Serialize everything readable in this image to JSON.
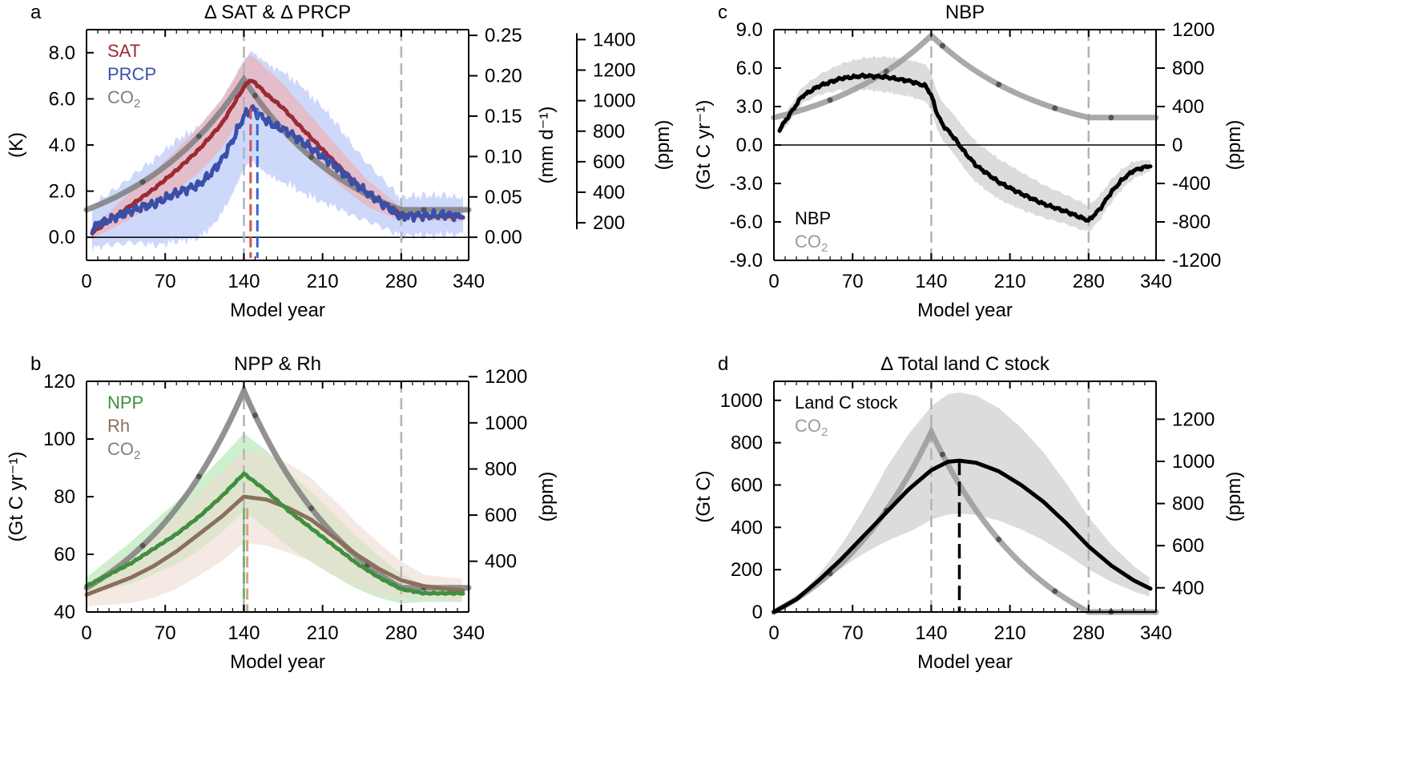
{
  "colors": {
    "sat": "#9b2a33",
    "prcp": "#3a4fa8",
    "co2": "#7f7f7f",
    "npp": "#3f8f3f",
    "rh": "#8a6f5e",
    "nbp": "#000000",
    "land_c": "#000000",
    "sat_band": "#e7b9c2",
    "prcp_band": "#c9d4fb",
    "npp_band": "#c6ecc6",
    "rh_band": "#ecdcd0",
    "gray_band": "#dcdcdc",
    "dash": "#b3b3b3"
  },
  "chart_data": [
    {
      "panel": "a",
      "type": "line",
      "title": "Δ SAT & Δ PRCP",
      "xlabel": "Model year",
      "ylabel": "(K)",
      "xlim": [
        0,
        340
      ],
      "xticks": [
        "0",
        "70",
        "140",
        "210",
        "280",
        "340"
      ],
      "ylim": [
        -1,
        9
      ],
      "yticks": [
        "0.0",
        "2.0",
        "4.0",
        "6.0",
        "8.0"
      ],
      "right_axes": [
        {
          "label": "(mm d⁻¹)",
          "range": [
            -0.0286,
            0.2571
          ],
          "ticks": [
            "0.00",
            "0.05",
            "0.10",
            "0.15",
            "0.20",
            "0.25"
          ]
        },
        {
          "label": "(ppm)",
          "range": [
            -46,
            1465
          ],
          "ticks": [
            "200",
            "400",
            "600",
            "800",
            "1000",
            "1200",
            "1400"
          ]
        }
      ],
      "legend": [
        {
          "text": "SAT",
          "color": "#9b2a33"
        },
        {
          "text": "PRCP",
          "color": "#3a4fa8"
        },
        {
          "text": "CO",
          "sub": "2",
          "color": "#7f7f7f"
        }
      ],
      "series": [
        {
          "name": "SAT",
          "x": [
            5,
            20,
            40,
            60,
            80,
            100,
            120,
            135,
            140,
            145,
            150,
            160,
            175,
            190,
            210,
            230,
            250,
            270,
            280,
            290,
            300,
            320,
            335
          ],
          "y": [
            0.2,
            0.7,
            1.4,
            2.1,
            2.9,
            3.8,
            4.9,
            6.1,
            6.5,
            6.8,
            6.7,
            6.2,
            5.6,
            4.8,
            3.8,
            2.8,
            1.9,
            1.3,
            1.0,
            0.95,
            0.92,
            0.9,
            0.88
          ]
        },
        {
          "name": "PRCP",
          "x": [
            5,
            10,
            20,
            30,
            40,
            50,
            60,
            70,
            80,
            90,
            100,
            110,
            120,
            130,
            140,
            147,
            155,
            165,
            180,
            200,
            220,
            240,
            260,
            280,
            290,
            300,
            310,
            320,
            330,
            335
          ],
          "y": [
            0.01,
            0.016,
            0.022,
            0.027,
            0.033,
            0.038,
            0.041,
            0.048,
            0.055,
            0.06,
            0.065,
            0.078,
            0.095,
            0.12,
            0.15,
            0.16,
            0.15,
            0.14,
            0.13,
            0.11,
            0.09,
            0.065,
            0.045,
            0.025,
            0.027,
            0.027,
            0.027,
            0.028,
            0.026,
            0.028
          ]
        },
        {
          "name": "CO2",
          "x": [
            0,
            140,
            280,
            340
          ],
          "y": [
            285,
            1140,
            285,
            285
          ]
        }
      ]
    },
    {
      "panel": "b",
      "type": "line",
      "title": "NPP & Rh",
      "xlabel": "Model year",
      "ylabel": "(Gt C yr⁻¹)",
      "xlim": [
        0,
        340
      ],
      "xticks": [
        "0",
        "70",
        "140",
        "210",
        "280",
        "340"
      ],
      "ylim": [
        40,
        120
      ],
      "yticks": [
        "40",
        "60",
        "80",
        "100",
        "120"
      ],
      "right_axes": [
        {
          "label": "(ppm)",
          "range": [
            180,
            1180
          ],
          "ticks": [
            "400",
            "600",
            "800",
            "1000",
            "1200"
          ]
        }
      ],
      "legend": [
        {
          "text": "NPP",
          "color": "#3f8f3f"
        },
        {
          "text": "Rh",
          "color": "#8a6f5e"
        },
        {
          "text": "CO",
          "sub": "2",
          "color": "#7f7f7f"
        }
      ],
      "series": [
        {
          "name": "NPP",
          "x": [
            0,
            20,
            40,
            60,
            80,
            100,
            120,
            140,
            160,
            180,
            200,
            220,
            240,
            260,
            280,
            300,
            320,
            335
          ],
          "y": [
            49,
            53,
            57,
            62,
            67,
            73,
            80,
            88,
            82,
            75,
            69,
            63,
            57,
            52,
            48,
            46.5,
            46.5,
            46.5
          ]
        },
        {
          "name": "Rh",
          "x": [
            0,
            20,
            40,
            60,
            80,
            100,
            120,
            140,
            160,
            180,
            200,
            220,
            240,
            260,
            280,
            300,
            320,
            335
          ],
          "y": [
            46,
            49,
            52,
            56,
            61,
            67,
            73,
            80,
            79,
            76,
            72,
            66,
            60,
            55,
            51,
            49,
            48,
            47.5
          ]
        },
        {
          "name": "CO2",
          "x": [
            0,
            140,
            280,
            340
          ],
          "y": [
            285,
            1140,
            285,
            285
          ]
        }
      ]
    },
    {
      "panel": "c",
      "type": "line",
      "title": "NBP",
      "xlabel": "Model year",
      "ylabel": "(Gt C yr⁻¹)",
      "xlim": [
        0,
        340
      ],
      "xticks": [
        "0",
        "70",
        "140",
        "210",
        "280",
        "340"
      ],
      "ylim": [
        -9,
        9
      ],
      "yticks": [
        "-9.0",
        "-6.0",
        "-3.0",
        "0.0",
        "3.0",
        "6.0",
        "9.0"
      ],
      "right_axes": [
        {
          "label": "(ppm)",
          "range": [
            -1200,
            1200
          ],
          "ticks": [
            "-1200",
            "-800",
            "-400",
            "0",
            "400",
            "800",
            "1200"
          ]
        }
      ],
      "legend": [
        {
          "text": "NBP",
          "color": "#000000"
        },
        {
          "text": "CO",
          "sub": "2",
          "color": "#9a9a9a"
        }
      ],
      "series": [
        {
          "name": "NBP",
          "x": [
            5,
            15,
            25,
            40,
            60,
            80,
            100,
            120,
            135,
            140,
            145,
            150,
            160,
            170,
            180,
            200,
            220,
            240,
            260,
            280,
            290,
            300,
            310,
            320,
            335
          ],
          "y": [
            1.2,
            2.5,
            3.8,
            4.6,
            5.2,
            5.4,
            5.3,
            5.0,
            4.6,
            3.9,
            2.5,
            1.6,
            0.6,
            -0.6,
            -1.6,
            -2.9,
            -3.8,
            -4.6,
            -5.2,
            -5.9,
            -5.0,
            -3.7,
            -2.7,
            -2.0,
            -1.6
          ]
        },
        {
          "name": "CO2",
          "x": [
            0,
            140,
            280,
            340
          ],
          "y": [
            285,
            1140,
            285,
            285
          ]
        }
      ]
    },
    {
      "panel": "d",
      "type": "line",
      "title": "Δ Total land C stock",
      "xlabel": "Model year",
      "ylabel": "(Gt C)",
      "xlim": [
        0,
        340
      ],
      "xticks": [
        "0",
        "70",
        "140",
        "210",
        "280",
        "340"
      ],
      "ylim": [
        0,
        1090
      ],
      "yticks": [
        "0",
        "200",
        "400",
        "600",
        "800",
        "1000"
      ],
      "right_axes": [
        {
          "label": "(ppm)",
          "range": [
            285,
            1380
          ],
          "ticks": [
            "400",
            "600",
            "800",
            "1000",
            "1200"
          ]
        }
      ],
      "legend": [
        {
          "text": "Land C stock",
          "color": "#000000"
        },
        {
          "text": "CO",
          "sub": "2",
          "color": "#9a9a9a"
        }
      ],
      "series": [
        {
          "name": "Land C stock",
          "x": [
            0,
            20,
            40,
            60,
            80,
            100,
            120,
            140,
            155,
            165,
            180,
            200,
            220,
            240,
            260,
            280,
            300,
            320,
            335
          ],
          "y": [
            0,
            60,
            150,
            250,
            360,
            470,
            580,
            670,
            710,
            715,
            705,
            665,
            600,
            520,
            420,
            310,
            220,
            150,
            110
          ]
        },
        {
          "name": "CO2",
          "x": [
            0,
            140,
            280,
            340
          ],
          "y": [
            285,
            1140,
            285,
            285
          ]
        }
      ]
    }
  ]
}
